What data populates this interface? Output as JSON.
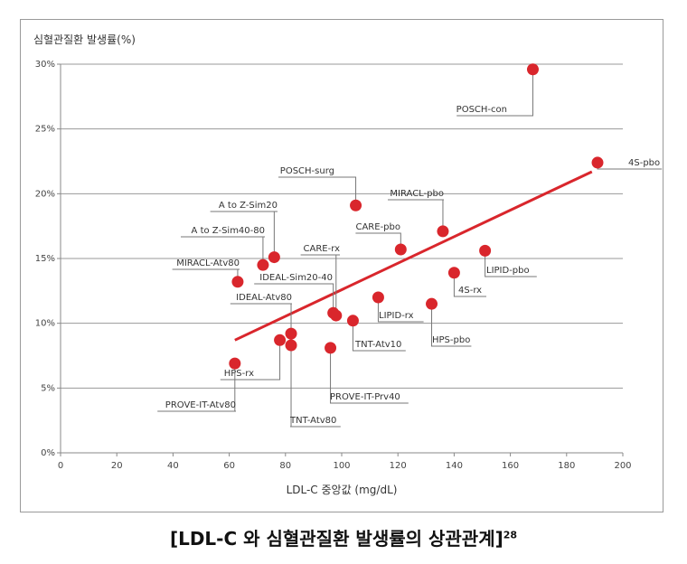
{
  "chart_data": {
    "type": "scatter",
    "ylabel": "심혈관질환 발생률(%)",
    "xlabel": "LDL-C 중앙값 (mg/dL)",
    "xlim": [
      0,
      200
    ],
    "ylim": [
      0,
      30
    ],
    "x_ticks": [
      "0",
      "20",
      "40",
      "60",
      "80",
      "100",
      "120",
      "140",
      "160",
      "180",
      "200"
    ],
    "y_ticks": [
      "0%",
      "5%",
      "10%",
      "15%",
      "20%",
      "25%",
      "30%"
    ],
    "grid": "horizontal",
    "point_color": "#d9262c",
    "trend_color": "#d9262c",
    "trend_line": [
      [
        62,
        8.7
      ],
      [
        189,
        21.7
      ]
    ],
    "points": [
      {
        "name": "POSCH-con",
        "x": 168,
        "y": 29.6
      },
      {
        "name": "4S-pbo",
        "x": 191,
        "y": 22.4
      },
      {
        "name": "POSCH-surg",
        "x": 105,
        "y": 19.1
      },
      {
        "name": "MIRACL-pbo",
        "x": 136,
        "y": 17.1
      },
      {
        "name": "A to Z-Sim20",
        "x": 76,
        "y": 15.1
      },
      {
        "name": "CARE-pbo",
        "x": 121,
        "y": 15.7
      },
      {
        "name": "LIPID-pbo",
        "x": 151,
        "y": 15.6
      },
      {
        "name": "A to Z-Sim40-80",
        "x": 72,
        "y": 14.5
      },
      {
        "name": "MIRACL-Atv80",
        "x": 63,
        "y": 13.2
      },
      {
        "name": "4S-rx",
        "x": 140,
        "y": 13.9
      },
      {
        "name": "LIPID-rx",
        "x": 113,
        "y": 12.0
      },
      {
        "name": "HPS-pbo",
        "x": 132,
        "y": 11.5
      },
      {
        "name": "IDEAL-Sim20-40",
        "x": 97,
        "y": 10.8
      },
      {
        "name": "CARE-rx",
        "x": 98,
        "y": 10.6
      },
      {
        "name": "TNT-Atv10",
        "x": 104,
        "y": 10.2
      },
      {
        "name": "IDEAL-Atv80",
        "x": 82,
        "y": 9.2
      },
      {
        "name": "HPS-rx",
        "x": 78,
        "y": 8.7
      },
      {
        "name": "TNT-Atv80",
        "x": 82,
        "y": 8.3
      },
      {
        "name": "PROVE-IT-Prv40",
        "x": 96,
        "y": 8.1
      },
      {
        "name": "PROVE-IT-Atv80",
        "x": 62,
        "y": 6.9
      }
    ]
  },
  "caption": {
    "text": "[LDL-C 와 심혈관질환 발생률의 상관관계]",
    "ref": "28"
  }
}
